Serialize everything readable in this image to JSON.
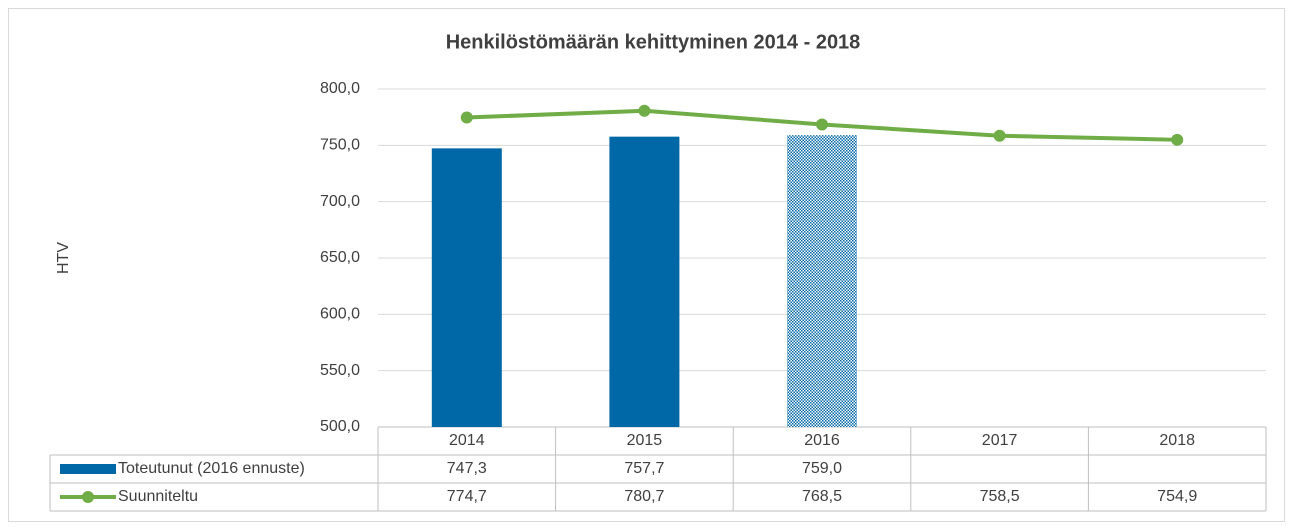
{
  "chart_data": {
    "type": "bar_line_table",
    "title": "Henkilöstömäärän kehittyminen 2014 - 2018",
    "y_label": "HTV",
    "categories": [
      "2014",
      "2015",
      "2016",
      "2017",
      "2018"
    ],
    "series": [
      {
        "name": "Toteutunut (2016 ennuste)",
        "type": "bar",
        "color": "#0068a6",
        "values": [
          747.3,
          757.7,
          759.0,
          null,
          null
        ],
        "value_labels": [
          "747,3",
          "757,7",
          "759,0",
          null,
          null
        ],
        "patterned": [
          false,
          false,
          true,
          false,
          false
        ]
      },
      {
        "name": "Suunniteltu",
        "type": "line",
        "color": "#70ad47",
        "values": [
          774.7,
          780.7,
          768.5,
          758.5,
          754.9
        ],
        "value_labels": [
          "774,7",
          "780,7",
          "768,5",
          "758,5",
          "754,9"
        ]
      }
    ],
    "ylim": [
      500,
      800
    ],
    "yticks": [
      {
        "value": 500,
        "label": "500,0"
      },
      {
        "value": 550,
        "label": "550,0"
      },
      {
        "value": 600,
        "label": "600,0"
      },
      {
        "value": 650,
        "label": "650,0"
      },
      {
        "value": 700,
        "label": "700,0"
      },
      {
        "value": 750,
        "label": "750,0"
      },
      {
        "value": 800,
        "label": "800,0"
      }
    ],
    "grid": true
  }
}
